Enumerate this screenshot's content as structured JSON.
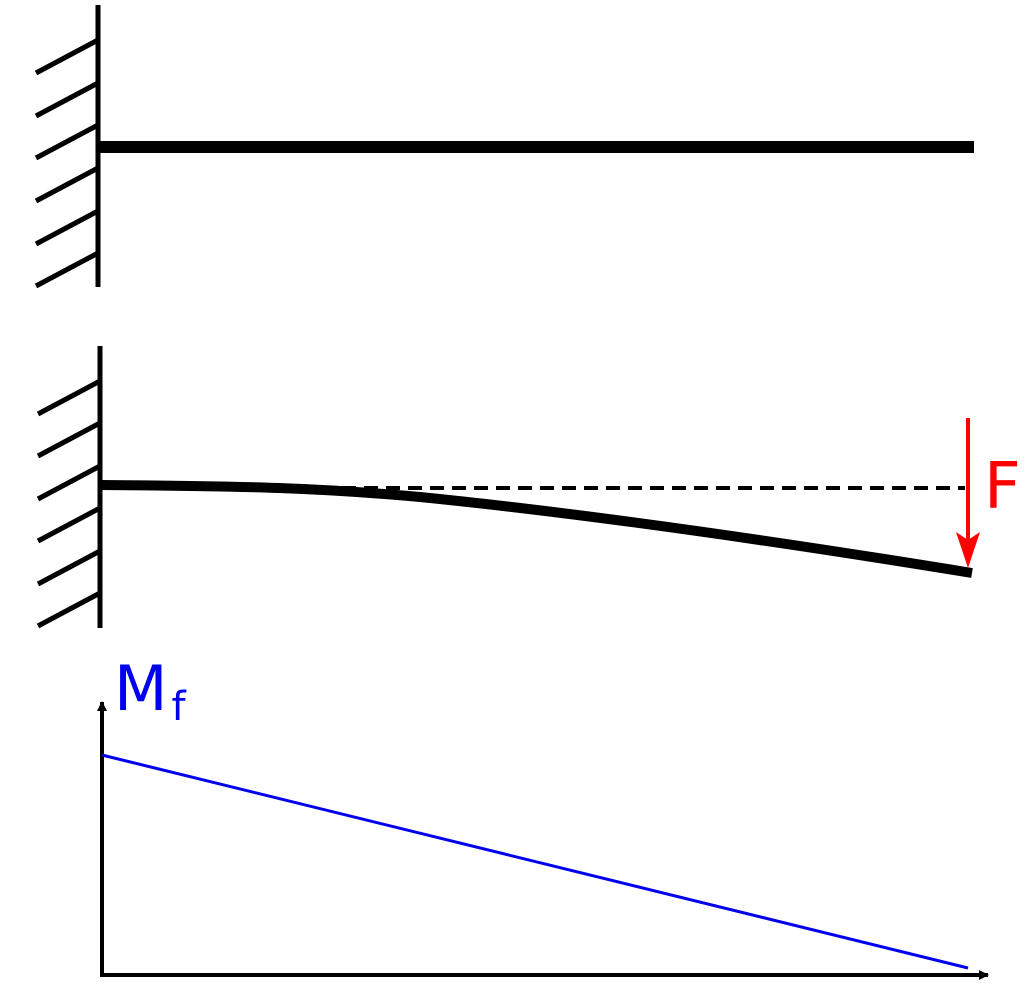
{
  "labels": {
    "force": "F",
    "moment": "M",
    "moment_subscript": "f"
  }
}
